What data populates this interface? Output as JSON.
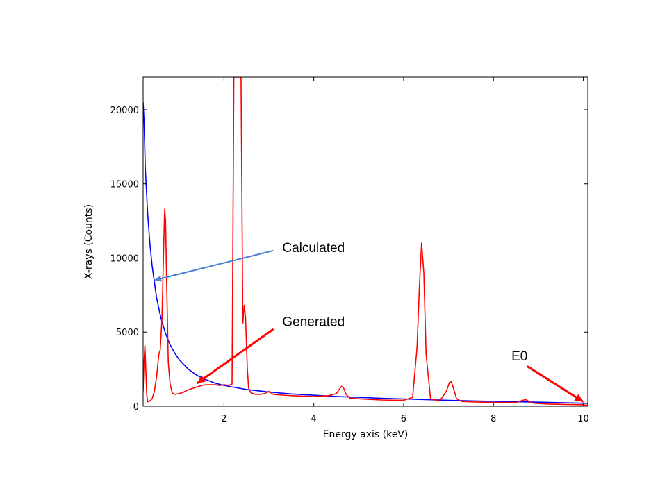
{
  "chart_data": {
    "type": "line",
    "title": "",
    "xlabel": "Energy axis (keV)",
    "ylabel": "X-rays (Counts)",
    "xlim": [
      0.2,
      10.1
    ],
    "ylim": [
      0,
      22200
    ],
    "xticks": [
      2,
      4,
      6,
      8,
      10
    ],
    "yticks": [
      0,
      5000,
      10000,
      15000,
      20000
    ],
    "xtick_labels": [
      "2",
      "4",
      "6",
      "8",
      "10"
    ],
    "ytick_labels": [
      "0",
      "5000",
      "10000",
      "15000",
      "20000"
    ],
    "grid": false,
    "legend": "none",
    "series": [
      {
        "color": "#0000ff",
        "x": [
          0.2,
          0.22,
          0.25,
          0.3,
          0.35,
          0.4,
          0.5,
          0.6,
          0.7,
          0.8,
          0.9,
          1.0,
          1.2,
          1.4,
          1.6,
          1.8,
          2.0,
          2.5,
          3.0,
          3.5,
          4.0,
          4.5,
          5.0,
          5.5,
          6.0,
          7.0,
          8.0,
          9.0,
          10.0,
          10.1
        ],
        "y": [
          20500,
          19300,
          16000,
          13000,
          11000,
          9500,
          7300,
          5900,
          4900,
          4150,
          3600,
          3150,
          2520,
          2080,
          1790,
          1560,
          1400,
          1130,
          960,
          830,
          740,
          660,
          600,
          540,
          490,
          400,
          330,
          270,
          200,
          190
        ]
      },
      {
        "color": "#ff0000",
        "x": [
          0.2,
          0.22,
          0.24,
          0.26,
          0.28,
          0.3,
          0.35,
          0.4,
          0.45,
          0.5,
          0.55,
          0.58,
          0.62,
          0.66,
          0.68,
          0.7,
          0.72,
          0.74,
          0.76,
          0.8,
          0.85,
          0.9,
          1.0,
          1.1,
          1.2,
          1.3,
          1.4,
          1.5,
          1.6,
          1.7,
          1.8,
          1.9,
          2.0,
          2.1,
          2.18,
          2.22,
          2.25,
          2.28,
          2.3,
          2.33,
          2.36,
          2.38,
          2.42,
          2.45,
          2.48,
          2.52,
          2.55,
          2.6,
          2.7,
          2.8,
          2.9,
          3.0,
          3.1,
          3.3,
          3.6,
          4.0,
          4.3,
          4.5,
          4.58,
          4.62,
          4.66,
          4.72,
          4.8,
          5.0,
          5.5,
          6.0,
          6.2,
          6.3,
          6.35,
          6.4,
          6.45,
          6.5,
          6.6,
          6.8,
          6.95,
          7.02,
          7.06,
          7.1,
          7.18,
          7.3,
          7.6,
          8.0,
          8.5,
          8.65,
          8.72,
          8.8,
          8.9,
          9.2,
          9.6,
          10.0,
          10.1
        ],
        "y": [
          1000,
          3000,
          4100,
          2500,
          800,
          300,
          350,
          500,
          1000,
          2000,
          3500,
          3800,
          6000,
          11000,
          13300,
          12500,
          9000,
          6000,
          3000,
          1500,
          900,
          800,
          850,
          950,
          1100,
          1200,
          1300,
          1400,
          1450,
          1450,
          1450,
          1400,
          1450,
          1400,
          1500,
          22200,
          22200,
          22200,
          22200,
          22200,
          22200,
          22200,
          5600,
          6800,
          6000,
          2500,
          1200,
          900,
          800,
          800,
          850,
          1000,
          800,
          750,
          700,
          650,
          700,
          850,
          1200,
          1350,
          1250,
          800,
          550,
          500,
          420,
          400,
          600,
          4000,
          8000,
          11000,
          9000,
          3500,
          500,
          350,
          1000,
          1600,
          1650,
          1300,
          500,
          320,
          280,
          250,
          250,
          400,
          450,
          300,
          200,
          150,
          120,
          100,
          60
        ]
      }
    ],
    "annotations": [
      {
        "text": "Calculated",
        "color": "#4a7fcc",
        "text_at": [
          3.3,
          10400
        ],
        "arrow_from": [
          3.1,
          10500
        ],
        "arrow_to": [
          0.45,
          8500
        ]
      },
      {
        "text": "Generated",
        "color": "#ff0000",
        "text_at": [
          3.3,
          5400
        ],
        "arrow_from": [
          3.1,
          5200
        ],
        "arrow_to": [
          1.4,
          1550
        ]
      },
      {
        "text": "E0",
        "color": "#ff0000",
        "text_at": [
          8.4,
          3100
        ],
        "arrow_from": [
          8.75,
          2700
        ],
        "arrow_to": [
          10.0,
          300
        ]
      }
    ]
  }
}
